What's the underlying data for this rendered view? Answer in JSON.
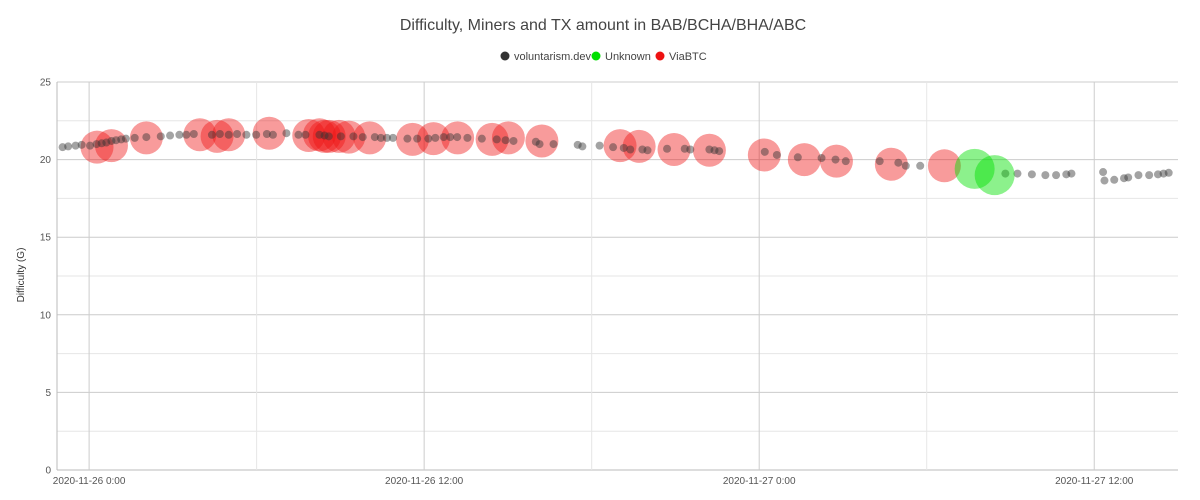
{
  "chart_data": {
    "type": "scatter",
    "title": "Difficulty, Miners and TX amount in BAB/BCHA/BHA/ABC",
    "xlabel": "",
    "ylabel": "Difficulty (G)",
    "x_range": [
      "2020-11-25 22:51",
      "2020-11-27 15:00"
    ],
    "ylim": [
      0,
      25
    ],
    "y_ticks": [
      0,
      5,
      10,
      15,
      20,
      25
    ],
    "x_ticks": [
      {
        "value": "2020-11-26 00:00",
        "label": "2020-11-26 0:00"
      },
      {
        "value": "2020-11-26 12:00",
        "label": "2020-11-26 12:00"
      },
      {
        "value": "2020-11-27 00:00",
        "label": "2020-11-27 0:00"
      },
      {
        "value": "2020-11-27 12:00",
        "label": "2020-11-27 12:00"
      }
    ],
    "grid": true,
    "legend_position": "top-center",
    "series": [
      {
        "name": "voluntarism.dev",
        "color": "#333333",
        "points": [
          [
            "2020-11-25 23:03",
            20.8
          ],
          [
            "2020-11-25 23:15",
            20.85
          ],
          [
            "2020-11-25 23:31",
            20.9
          ],
          [
            "2020-11-25 23:44",
            20.95
          ],
          [
            "2020-11-26 00:02",
            20.9
          ],
          [
            "2020-11-26 00:16",
            21.0
          ],
          [
            "2020-11-26 00:27",
            21.05
          ],
          [
            "2020-11-26 00:37",
            21.1
          ],
          [
            "2020-11-26 00:48",
            21.2
          ],
          [
            "2020-11-26 00:58",
            21.25
          ],
          [
            "2020-11-26 01:09",
            21.3
          ],
          [
            "2020-11-26 01:19",
            21.35
          ],
          [
            "2020-11-26 01:38",
            21.4
          ],
          [
            "2020-11-26 02:03",
            21.45
          ],
          [
            "2020-11-26 02:34",
            21.5
          ],
          [
            "2020-11-26 02:54",
            21.55
          ],
          [
            "2020-11-26 03:14",
            21.6
          ],
          [
            "2020-11-26 03:29",
            21.6
          ],
          [
            "2020-11-26 03:45",
            21.65
          ],
          [
            "2020-11-26 04:24",
            21.6
          ],
          [
            "2020-11-26 04:41",
            21.65
          ],
          [
            "2020-11-26 05:00",
            21.6
          ],
          [
            "2020-11-26 05:18",
            21.65
          ],
          [
            "2020-11-26 05:38",
            21.6
          ],
          [
            "2020-11-26 05:59",
            21.6
          ],
          [
            "2020-11-26 06:22",
            21.65
          ],
          [
            "2020-11-26 06:35",
            21.6
          ],
          [
            "2020-11-26 07:04",
            21.7
          ],
          [
            "2020-11-26 07:30",
            21.6
          ],
          [
            "2020-11-26 07:45",
            21.6
          ],
          [
            "2020-11-26 08:15",
            21.6
          ],
          [
            "2020-11-26 08:26",
            21.55
          ],
          [
            "2020-11-26 08:35",
            21.5
          ],
          [
            "2020-11-26 09:01",
            21.5
          ],
          [
            "2020-11-26 09:28",
            21.5
          ],
          [
            "2020-11-26 09:48",
            21.45
          ],
          [
            "2020-11-26 10:14",
            21.45
          ],
          [
            "2020-11-26 10:27",
            21.4
          ],
          [
            "2020-11-26 10:40",
            21.4
          ],
          [
            "2020-11-26 10:53",
            21.4
          ],
          [
            "2020-11-26 11:24",
            21.35
          ],
          [
            "2020-11-26 11:45",
            21.35
          ],
          [
            "2020-11-26 12:09",
            21.35
          ],
          [
            "2020-11-26 12:24",
            21.4
          ],
          [
            "2020-11-26 12:42",
            21.45
          ],
          [
            "2020-11-26 12:56",
            21.45
          ],
          [
            "2020-11-26 13:11",
            21.45
          ],
          [
            "2020-11-26 13:33",
            21.4
          ],
          [
            "2020-11-26 14:04",
            21.35
          ],
          [
            "2020-11-26 14:36",
            21.3
          ],
          [
            "2020-11-26 14:55",
            21.25
          ],
          [
            "2020-11-26 15:12",
            21.2
          ],
          [
            "2020-11-26 16:00",
            21.15
          ],
          [
            "2020-11-26 16:08",
            21.0
          ],
          [
            "2020-11-26 16:38",
            21.0
          ],
          [
            "2020-11-26 17:30",
            20.95
          ],
          [
            "2020-11-26 17:40",
            20.85
          ],
          [
            "2020-11-26 18:17",
            20.9
          ],
          [
            "2020-11-26 18:46",
            20.8
          ],
          [
            "2020-11-26 19:09",
            20.75
          ],
          [
            "2020-11-26 19:23",
            20.65
          ],
          [
            "2020-11-26 19:49",
            20.65
          ],
          [
            "2020-11-26 20:00",
            20.6
          ],
          [
            "2020-11-26 20:42",
            20.7
          ],
          [
            "2020-11-26 21:20",
            20.7
          ],
          [
            "2020-11-26 21:32",
            20.65
          ],
          [
            "2020-11-26 22:13",
            20.65
          ],
          [
            "2020-11-26 22:24",
            20.6
          ],
          [
            "2020-11-26 22:34",
            20.55
          ],
          [
            "2020-11-27 00:12",
            20.5
          ],
          [
            "2020-11-27 00:38",
            20.3
          ],
          [
            "2020-11-27 01:23",
            20.15
          ],
          [
            "2020-11-27 02:14",
            20.1
          ],
          [
            "2020-11-27 02:44",
            20.0
          ],
          [
            "2020-11-27 03:06",
            19.9
          ],
          [
            "2020-11-27 04:19",
            19.9
          ],
          [
            "2020-11-27 04:59",
            19.8
          ],
          [
            "2020-11-27 05:15",
            19.6
          ],
          [
            "2020-11-27 05:46",
            19.6
          ],
          [
            "2020-11-27 08:49",
            19.1
          ],
          [
            "2020-11-27 09:15",
            19.1
          ],
          [
            "2020-11-27 09:46",
            19.05
          ],
          [
            "2020-11-27 10:15",
            19.0
          ],
          [
            "2020-11-27 10:38",
            19.0
          ],
          [
            "2020-11-27 11:00",
            19.05
          ],
          [
            "2020-11-27 11:11",
            19.1
          ],
          [
            "2020-11-27 12:19",
            19.2
          ],
          [
            "2020-11-27 12:22",
            18.65
          ],
          [
            "2020-11-27 12:43",
            18.7
          ],
          [
            "2020-11-27 13:04",
            18.8
          ],
          [
            "2020-11-27 13:13",
            18.85
          ],
          [
            "2020-11-27 13:35",
            19.0
          ],
          [
            "2020-11-27 13:58",
            19.0
          ],
          [
            "2020-11-27 14:17",
            19.05
          ],
          [
            "2020-11-27 14:29",
            19.1
          ],
          [
            "2020-11-27 14:40",
            19.15
          ]
        ]
      },
      {
        "name": "Unknown",
        "color": "#00e000",
        "points": [
          [
            "2020-11-27 07:43",
            19.4
          ],
          [
            "2020-11-27 08:26",
            19.0
          ]
        ]
      },
      {
        "name": "ViaBTC",
        "color": "#ee1111",
        "points": [
          [
            "2020-11-26 00:17",
            20.8
          ],
          [
            "2020-11-26 00:48",
            20.9
          ],
          [
            "2020-11-26 02:03",
            21.4
          ],
          [
            "2020-11-26 03:58",
            21.6
          ],
          [
            "2020-11-26 04:35",
            21.5
          ],
          [
            "2020-11-26 05:00",
            21.6
          ],
          [
            "2020-11-26 06:27",
            21.7
          ],
          [
            "2020-11-26 07:52",
            21.55
          ],
          [
            "2020-11-26 08:15",
            21.6
          ],
          [
            "2020-11-26 08:26",
            21.5
          ],
          [
            "2020-11-26 08:36",
            21.5
          ],
          [
            "2020-11-26 08:57",
            21.5
          ],
          [
            "2020-11-26 09:18",
            21.45
          ],
          [
            "2020-11-26 10:03",
            21.4
          ],
          [
            "2020-11-26 11:35",
            21.3
          ],
          [
            "2020-11-26 12:20",
            21.35
          ],
          [
            "2020-11-26 13:12",
            21.4
          ],
          [
            "2020-11-26 14:26",
            21.3
          ],
          [
            "2020-11-26 15:01",
            21.4
          ],
          [
            "2020-11-26 16:13",
            21.2
          ],
          [
            "2020-11-26 19:01",
            20.9
          ],
          [
            "2020-11-26 19:42",
            20.85
          ],
          [
            "2020-11-26 20:57",
            20.65
          ],
          [
            "2020-11-26 22:13",
            20.6
          ],
          [
            "2020-11-27 00:11",
            20.3
          ],
          [
            "2020-11-27 01:37",
            20.0
          ],
          [
            "2020-11-27 02:46",
            19.9
          ],
          [
            "2020-11-27 04:44",
            19.7
          ],
          [
            "2020-11-27 06:38",
            19.6
          ]
        ]
      }
    ]
  }
}
